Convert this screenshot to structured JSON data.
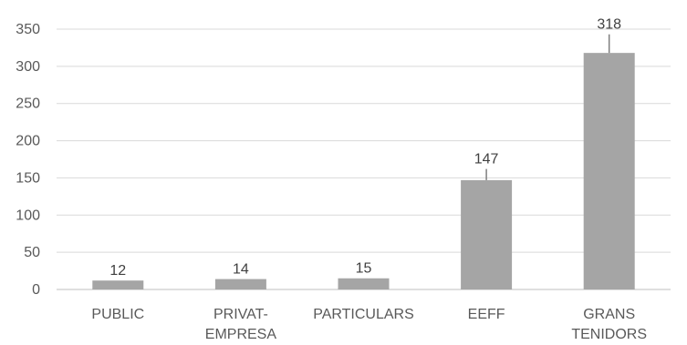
{
  "chart_data": {
    "type": "bar",
    "title": "",
    "xlabel": "",
    "ylabel": "",
    "ylim": [
      0,
      350
    ],
    "yticks": [
      0,
      50,
      100,
      150,
      200,
      250,
      300,
      350
    ],
    "grid": true,
    "legend": "none",
    "categories": [
      [
        "PUBLIC"
      ],
      [
        "PRIVAT-",
        "EMPRESA"
      ],
      [
        "PARTICULARS"
      ],
      [
        "EEFF"
      ],
      [
        "GRANS",
        "TENIDORS"
      ]
    ],
    "values": [
      12,
      14,
      15,
      147,
      318
    ],
    "value_labels": [
      "12",
      "14",
      "15",
      "147",
      "318"
    ],
    "error_upper": [
      12,
      14,
      15,
      162,
      343
    ],
    "colors": {
      "bar": "#a5a5a5",
      "grid": "#d9d9d9",
      "text": "#595959",
      "error_bar": "#7f7f7f"
    }
  }
}
